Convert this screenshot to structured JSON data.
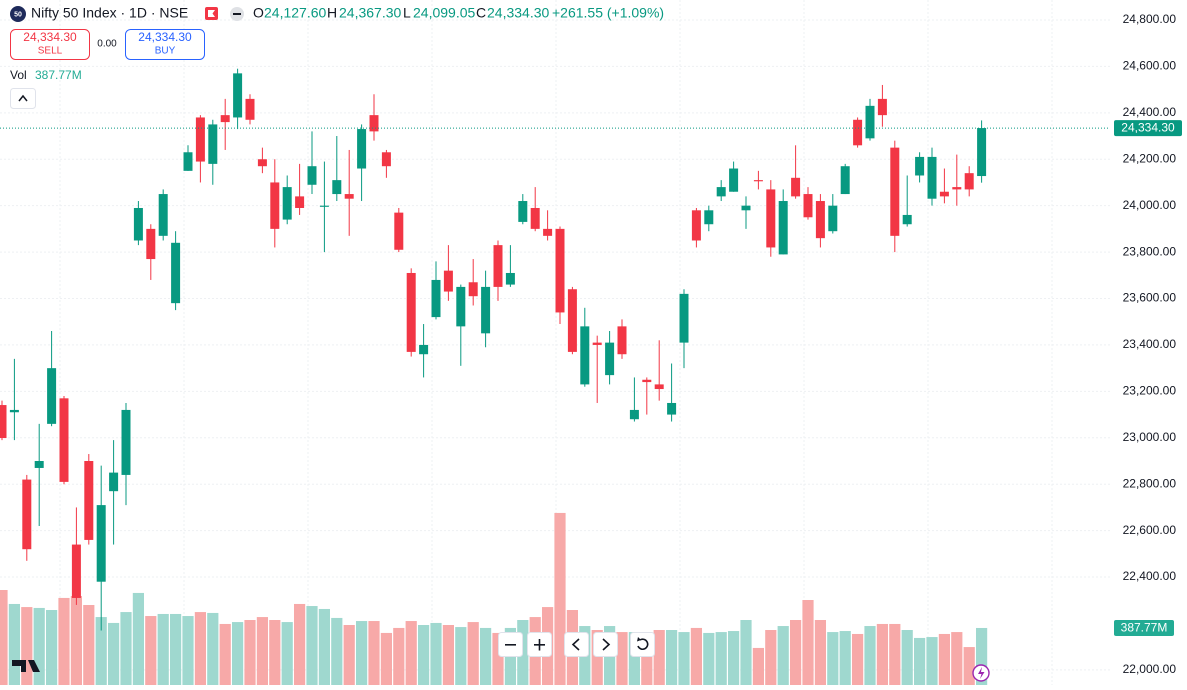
{
  "header": {
    "logo_text": "50",
    "symbol": "Nifty 50 Index · 1D · NSE",
    "o_label": "O",
    "o_value": "24,127.60",
    "h_label": "H",
    "h_value": "24,367.30",
    "l_label": "L",
    "l_value": "24,099.05",
    "c_label": "C",
    "c_value": "24,334.30",
    "change": "+261.55 (+1.09%)",
    "sell_price": "24,334.30",
    "sell_label": "SELL",
    "spread": "0.00",
    "buy_price": "24,334.30",
    "buy_label": "BUY",
    "vol_label": "Vol",
    "vol_value": "387.77M"
  },
  "chart_data": {
    "type": "candlestick",
    "up_color": "#089981",
    "down_color": "#f23645",
    "volume_up_color": "#9fd8cf",
    "volume_down_color": "#f7a9a8",
    "grid": true,
    "ylim": [
      21935,
      24886
    ],
    "yticks": [
      {
        "value": 24800,
        "label": "24,800.00"
      },
      {
        "value": 24600,
        "label": "24,600.00"
      },
      {
        "value": 24400,
        "label": "24,400.00"
      },
      {
        "value": 24200,
        "label": "24,200.00"
      },
      {
        "value": 24000,
        "label": "24,000.00"
      },
      {
        "value": 23800,
        "label": "23,800.00"
      },
      {
        "value": 23600,
        "label": "23,600.00"
      },
      {
        "value": 23400,
        "label": "23,400.00"
      },
      {
        "value": 23200,
        "label": "23,200.00"
      },
      {
        "value": 23000,
        "label": "23,000.00"
      },
      {
        "value": 22800,
        "label": "22,800.00"
      },
      {
        "value": 22600,
        "label": "22,600.00"
      },
      {
        "value": 22400,
        "label": "22,400.00"
      },
      {
        "value": 22000,
        "label": "22,000.00"
      }
    ],
    "last_price": 24334.3,
    "last_price_label": "24,334.30",
    "volume_lim": [
      0,
      4658
    ],
    "last_volume_label": "387.77M",
    "open": [
      23141,
      23110,
      22820,
      22870,
      23060,
      23170,
      22540,
      22900,
      22380,
      22770,
      22840,
      23850,
      23900,
      23870,
      23580,
      24150,
      24380,
      24180,
      24390,
      24380,
      24460,
      24200,
      24100,
      23940,
      24040,
      24090,
      23995,
      24050,
      24050,
      24160,
      24390,
      24230,
      23970,
      23710,
      23360,
      23520,
      23720,
      23480,
      23670,
      23450,
      23830,
      23660,
      23930,
      23990,
      23900,
      23900,
      23640,
      23230,
      23410,
      23270,
      23480,
      23080,
      23250,
      23230,
      23100,
      23410,
      23980,
      23920,
      24040,
      24060,
      23980,
      24110,
      24070,
      23790,
      24120,
      24050,
      24020,
      23890,
      24050,
      24370,
      24290,
      24460,
      24250,
      23920,
      24130,
      24030,
      24060,
      24080,
      24140,
      24127.6
    ],
    "high": [
      23160,
      23340,
      22840,
      23060,
      23460,
      23180,
      22700,
      22930,
      22880,
      22990,
      23150,
      24020,
      23920,
      24070,
      23890,
      24260,
      24390,
      24370,
      24460,
      24590,
      24480,
      24250,
      24200,
      24130,
      24180,
      24320,
      24190,
      24300,
      24240,
      24350,
      24480,
      24240,
      23990,
      23730,
      23490,
      23760,
      23830,
      23660,
      23770,
      23720,
      23850,
      23830,
      24050,
      24080,
      23980,
      23910,
      23650,
      23560,
      23440,
      23460,
      23510,
      23260,
      23260,
      23420,
      23320,
      23640,
      23990,
      24000,
      24110,
      24190,
      24040,
      24150,
      24110,
      24070,
      24260,
      24080,
      24050,
      24050,
      24180,
      24380,
      24460,
      24520,
      24280,
      24130,
      24230,
      24250,
      24160,
      24220,
      24170,
      24367.3
    ],
    "low": [
      22990,
      22990,
      22470,
      22620,
      23050,
      22800,
      22280,
      22540,
      22170,
      22540,
      22710,
      23830,
      23680,
      23850,
      23550,
      24150,
      24100,
      24090,
      24240,
      24330,
      24350,
      24140,
      23820,
      23920,
      23960,
      24050,
      23800,
      24020,
      23870,
      24020,
      24280,
      24120,
      23800,
      23350,
      23260,
      23510,
      23590,
      23310,
      23570,
      23390,
      23590,
      23650,
      23920,
      23890,
      23850,
      23490,
      23360,
      23220,
      23150,
      23230,
      23340,
      23070,
      23100,
      23160,
      23070,
      23300,
      23820,
      23890,
      24020,
      24060,
      23900,
      24070,
      23780,
      23790,
      24030,
      23940,
      23820,
      23880,
      24050,
      24250,
      24280,
      24340,
      23800,
      23910,
      24100,
      24000,
      24010,
      24000,
      24040,
      24099.05
    ],
    "close": [
      22999,
      23120,
      22520,
      22900,
      23300,
      22810,
      22310,
      22560,
      22710,
      22850,
      23120,
      23990,
      23770,
      24050,
      23840,
      24230,
      24190,
      24350,
      24360,
      24570,
      24370,
      24170,
      23900,
      24080,
      23990,
      24170,
      24000,
      24110,
      24030,
      24330,
      24320,
      24170,
      23810,
      23370,
      23400,
      23680,
      23630,
      23650,
      23610,
      23650,
      23650,
      23710,
      24020,
      23900,
      23870,
      23540,
      23370,
      23480,
      23400,
      23410,
      23360,
      23120,
      23240,
      23210,
      23150,
      23620,
      23850,
      23980,
      24080,
      24160,
      24000,
      24105,
      23820,
      24020,
      24040,
      23950,
      23860,
      24000,
      24170,
      24260,
      24430,
      24390,
      23870,
      23960,
      24210,
      24210,
      24040,
      24070,
      24070,
      24334.3
    ],
    "volume": [
      646,
      551,
      530,
      524,
      510,
      592,
      605,
      544,
      462,
      422,
      496,
      626,
      469,
      483,
      483,
      469,
      496,
      490,
      415,
      428,
      442,
      462,
      442,
      428,
      551,
      537,
      517,
      456,
      408,
      435,
      435,
      354,
      388,
      435,
      408,
      422,
      408,
      394,
      428,
      388,
      354,
      388,
      442,
      462,
      530,
      1170,
      510,
      401,
      374,
      401,
      360,
      360,
      354,
      374,
      374,
      360,
      388,
      354,
      360,
      367,
      442,
      252,
      374,
      401,
      442,
      578,
      442,
      360,
      367,
      347,
      401,
      415,
      415,
      374,
      320,
      326,
      347,
      360,
      258,
      387.77
    ]
  }
}
